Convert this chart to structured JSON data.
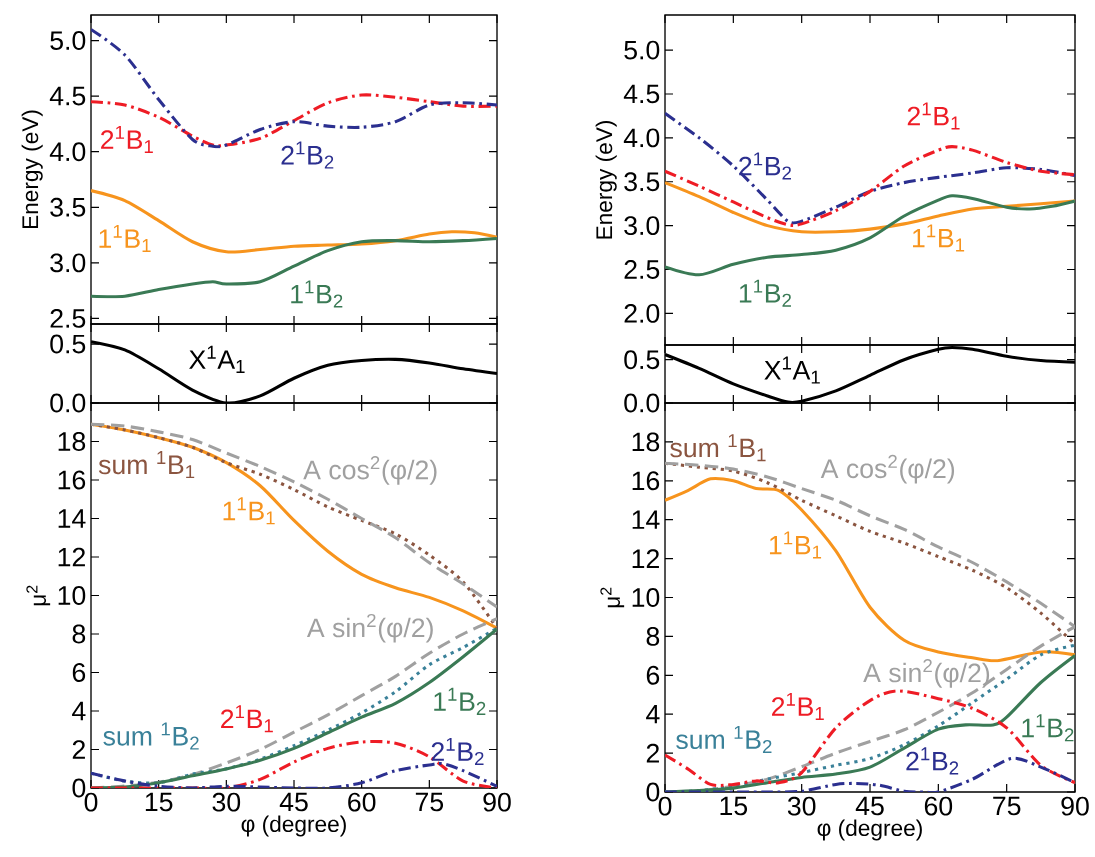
{
  "chart_data": [
    {
      "type": "line",
      "ylabel": "Energy (eV)",
      "xlim": [
        0,
        90
      ],
      "xticks": [
        0,
        15,
        30,
        45,
        60,
        75,
        90
      ],
      "ylim": [
        2.45,
        5.23
      ],
      "yticks": [
        {
          "value": 2.5,
          "label": "2.5"
        },
        {
          "value": 3,
          "label": "3.0"
        },
        {
          "value": 3.5,
          "label": "3.5"
        },
        {
          "value": 4,
          "label": "4.0"
        },
        {
          "value": 4.5,
          "label": "4.5"
        },
        {
          "value": 5,
          "label": "5.0"
        }
      ],
      "tick_labels": "y",
      "series": [
        {
          "name": "2$^{1}$B$_{1}$",
          "color": "#ee1c25",
          "line_style": "dashdot",
          "x": [
            0,
            7.5,
            15,
            22.5,
            27,
            30,
            37.5,
            45,
            52.5,
            60,
            67.5,
            75,
            82.5,
            90
          ],
          "values": [
            4.45,
            4.42,
            4.31,
            4.14,
            4.06,
            4.06,
            4.12,
            4.28,
            4.44,
            4.51,
            4.49,
            4.45,
            4.41,
            4.41
          ]
        },
        {
          "name": "2$^{1}$B$_{2}$",
          "color": "#2b2f8f",
          "line_style": "dashdot",
          "x": [
            0,
            7.5,
            15,
            22.5,
            27,
            30,
            37.5,
            45,
            52.5,
            60,
            67.5,
            75,
            82.5,
            90
          ],
          "values": [
            5.1,
            4.87,
            4.47,
            4.11,
            4.05,
            4.06,
            4.2,
            4.27,
            4.23,
            4.22,
            4.27,
            4.42,
            4.44,
            4.42
          ]
        },
        {
          "name": "1$^{1}$B$_{1}$",
          "color": "#f7941d",
          "line_style": "solid",
          "x": [
            0,
            7.5,
            15,
            22.5,
            30,
            37.5,
            45,
            52.5,
            60,
            67.5,
            75,
            80,
            85,
            90
          ],
          "values": [
            3.65,
            3.56,
            3.38,
            3.19,
            3.1,
            3.12,
            3.15,
            3.16,
            3.17,
            3.2,
            3.26,
            3.28,
            3.27,
            3.23
          ]
        },
        {
          "name": "1$^{1}$B$_{2}$",
          "color": "#3a7a55",
          "line_style": "solid",
          "x": [
            0,
            7.5,
            15,
            22.5,
            27,
            30,
            37.5,
            45,
            52.5,
            60,
            67.5,
            75,
            82.5,
            90
          ],
          "values": [
            2.7,
            2.7,
            2.76,
            2.81,
            2.83,
            2.81,
            2.83,
            2.97,
            3.11,
            3.19,
            3.2,
            3.19,
            3.2,
            3.22
          ]
        }
      ]
    },
    {
      "type": "line",
      "ylabel": "Energy (eV)",
      "xlim": [
        0,
        90
      ],
      "xticks": [
        0,
        15,
        30,
        45,
        60,
        75,
        90
      ],
      "ylim": [
        1.64,
        5.4
      ],
      "yticks": [
        {
          "value": 2,
          "label": "2.0"
        },
        {
          "value": 2.5,
          "label": "2.5"
        },
        {
          "value": 3,
          "label": "3.0"
        },
        {
          "value": 3.5,
          "label": "3.5"
        },
        {
          "value": 4,
          "label": "4.0"
        },
        {
          "value": 4.5,
          "label": "4.5"
        },
        {
          "value": 5,
          "label": "5.0"
        }
      ],
      "tick_labels": "y",
      "series": [
        {
          "name": "2$^{1}$B$_{2}$",
          "color": "#2b2f8f",
          "line_style": "dashdot",
          "x": [
            0,
            7.5,
            15,
            22.5,
            27,
            30,
            37.5,
            45,
            52.5,
            60,
            67.5,
            75,
            82.5,
            90
          ],
          "values": [
            4.28,
            4.0,
            3.68,
            3.29,
            3.05,
            3.05,
            3.21,
            3.39,
            3.49,
            3.55,
            3.6,
            3.66,
            3.64,
            3.57
          ]
        },
        {
          "name": "2$^{1}$B$_{1}$",
          "color": "#ee1c25",
          "line_style": "dashdot",
          "x": [
            0,
            7.5,
            15,
            22.5,
            27,
            30,
            37.5,
            45,
            52.5,
            60,
            63,
            67.5,
            75,
            82.5,
            90
          ],
          "values": [
            3.62,
            3.45,
            3.27,
            3.09,
            3.01,
            3.02,
            3.17,
            3.39,
            3.68,
            3.86,
            3.9,
            3.86,
            3.72,
            3.62,
            3.58
          ]
        },
        {
          "name": "1$^{1}$B$_{1}$",
          "color": "#f7941d",
          "line_style": "solid",
          "x": [
            0,
            7.5,
            15,
            22.5,
            30,
            37.5,
            45,
            52.5,
            60,
            67.5,
            75,
            82.5,
            90
          ],
          "values": [
            3.49,
            3.33,
            3.15,
            3.0,
            2.93,
            2.93,
            2.96,
            3.02,
            3.11,
            3.19,
            3.22,
            3.25,
            3.28
          ]
        },
        {
          "name": "1$^{1}$B$_{2}$",
          "color": "#3a7a55",
          "line_style": "solid",
          "x": [
            0,
            7.5,
            15,
            22.5,
            30,
            37.5,
            45,
            52.5,
            60,
            63,
            67.5,
            75,
            80,
            85,
            90
          ],
          "values": [
            2.53,
            2.44,
            2.56,
            2.64,
            2.67,
            2.72,
            2.86,
            3.11,
            3.29,
            3.34,
            3.31,
            3.21,
            3.19,
            3.22,
            3.28
          ]
        }
      ]
    },
    {
      "type": "line",
      "xlim": [
        0,
        90
      ],
      "xticks": [
        0,
        15,
        30,
        45,
        60,
        75,
        90
      ],
      "ylim": [
        0,
        0.67
      ],
      "yticks": [
        {
          "value": 0,
          "label": "0.0"
        },
        {
          "value": 0.5,
          "label": "0.5"
        }
      ],
      "tick_labels": "y",
      "series": [
        {
          "name": "X$^{1}$A$_{1}$",
          "color": "#000000",
          "line_style": "solid",
          "x": [
            0,
            7.5,
            15,
            22.5,
            30,
            37.5,
            45,
            52.5,
            60,
            67.5,
            75,
            82.5,
            90
          ],
          "values": [
            0.52,
            0.45,
            0.29,
            0.11,
            0.0,
            0.06,
            0.21,
            0.32,
            0.36,
            0.37,
            0.34,
            0.29,
            0.25
          ]
        }
      ]
    },
    {
      "type": "line",
      "xlim": [
        0,
        90
      ],
      "xticks": [
        0,
        15,
        30,
        45,
        60,
        75,
        90
      ],
      "ylim": [
        0,
        0.67
      ],
      "yticks": [
        {
          "value": 0,
          "label": "0.0"
        },
        {
          "value": 0.5,
          "label": "0.5"
        }
      ],
      "tick_labels": "y",
      "series": [
        {
          "name": "X$^{1}$A$_{1}$",
          "color": "#000000",
          "line_style": "solid",
          "x": [
            0,
            7.5,
            15,
            22.5,
            27,
            30,
            37.5,
            45,
            52.5,
            60,
            63,
            67.5,
            75,
            82.5,
            90
          ],
          "values": [
            0.56,
            0.4,
            0.22,
            0.08,
            0.01,
            0.02,
            0.14,
            0.32,
            0.5,
            0.62,
            0.64,
            0.62,
            0.54,
            0.49,
            0.47
          ]
        }
      ]
    },
    {
      "type": "line",
      "xlabel": "φ (degree)",
      "ylabel": "μ$^{2}$",
      "xlim": [
        0,
        90
      ],
      "xticks": [
        0,
        15,
        30,
        45,
        60,
        75,
        90
      ],
      "ylim": [
        0,
        20
      ],
      "yticks": [
        0,
        2,
        4,
        6,
        8,
        10,
        12,
        14,
        16,
        18
      ],
      "series": [
        {
          "name": "1$^{1}$B$_{1}$",
          "color": "#f7941d",
          "line_style": "solid",
          "x": [
            0,
            7.5,
            15,
            22.5,
            30,
            37.5,
            45,
            52.5,
            60,
            67.5,
            75,
            82.5,
            90
          ],
          "values": [
            18.9,
            18.6,
            18.2,
            17.7,
            16.9,
            15.7,
            13.9,
            12.3,
            11.1,
            10.4,
            9.9,
            9.2,
            8.3
          ]
        },
        {
          "name": "sum $^{1}$B$_{1}$",
          "color": "#8b5540",
          "line_style": "dotted",
          "x": [
            0,
            7.5,
            15,
            22.5,
            30,
            37.5,
            45,
            52.5,
            60,
            67.5,
            75,
            82.5,
            90
          ],
          "values": [
            18.9,
            18.6,
            18.2,
            17.7,
            16.9,
            16.3,
            15.5,
            14.6,
            13.9,
            13.2,
            12.1,
            10.7,
            8.3
          ]
        },
        {
          "name": "A cos$^{2}$(φ/2)",
          "color": "#a0a0a0",
          "line_style": "dashed",
          "x": [
            0,
            7.5,
            15,
            22.5,
            30,
            37.5,
            45,
            52.5,
            60,
            67.5,
            75,
            82.5,
            90
          ],
          "values": [
            18.9,
            18.8,
            18.5,
            18.1,
            17.4,
            16.7,
            15.9,
            15.0,
            14.0,
            13.0,
            11.7,
            10.6,
            9.4
          ]
        },
        {
          "name": "A sin$^{2}$(φ/2)",
          "color": "#a0a0a0",
          "line_style": "dashed",
          "x": [
            0,
            7.5,
            15,
            22.5,
            30,
            37.5,
            45,
            52.5,
            60,
            67.5,
            75,
            82.5,
            90
          ],
          "values": [
            0,
            0.1,
            0.3,
            0.7,
            1.3,
            2.0,
            2.9,
            3.8,
            4.8,
            5.8,
            7.0,
            8.0,
            8.8
          ]
        },
        {
          "name": "sum $^{1}$B$_{2}$",
          "color": "#3a8199",
          "line_style": "dotted",
          "x": [
            0,
            7.5,
            15,
            22.5,
            30,
            37.5,
            45,
            52.5,
            60,
            67.5,
            75,
            82.5,
            90
          ],
          "values": [
            0.77,
            0.36,
            0.27,
            0.72,
            1.0,
            1.5,
            2.2,
            3.0,
            3.9,
            5.0,
            6.4,
            7.3,
            8.3
          ]
        },
        {
          "name": "1$^{1}$B$_{2}$",
          "color": "#3a7a55",
          "line_style": "solid",
          "x": [
            0,
            7.5,
            15,
            22.5,
            30,
            37.5,
            45,
            52.5,
            60,
            67.5,
            75,
            82.5,
            90
          ],
          "values": [
            0,
            0.05,
            0.27,
            0.63,
            0.99,
            1.44,
            2.06,
            2.87,
            3.68,
            4.4,
            5.48,
            6.82,
            8.26
          ]
        },
        {
          "name": "2$^{1}$B$_{1}$",
          "color": "#ee1c25",
          "line_style": "dashdot",
          "x": [
            0,
            7.5,
            15,
            22.5,
            30,
            37.5,
            45,
            52.5,
            60,
            67.5,
            75,
            82.5,
            90
          ],
          "values": [
            0,
            0,
            0,
            0,
            0,
            0.45,
            1.35,
            2.06,
            2.39,
            2.33,
            1.62,
            0.36,
            0
          ]
        },
        {
          "name": "2$^{1}$B$_{2}$",
          "color": "#2b2f8f",
          "line_style": "dashdot",
          "x": [
            0,
            7.5,
            15,
            22.5,
            30,
            37.5,
            45,
            52.5,
            60,
            67.5,
            75,
            78,
            82.5,
            90
          ],
          "values": [
            0.77,
            0.36,
            0.09,
            0,
            0.09,
            0.05,
            0,
            0,
            0.27,
            0.9,
            1.2,
            1.26,
            0.9,
            0.09
          ]
        }
      ]
    },
    {
      "type": "line",
      "xlabel": "φ (degree)",
      "ylabel": "μ$^{2}$",
      "xlim": [
        0,
        90
      ],
      "xticks": [
        0,
        15,
        30,
        45,
        60,
        75,
        90
      ],
      "ylim": [
        0,
        20
      ],
      "yticks": [
        0,
        2,
        4,
        6,
        8,
        10,
        12,
        14,
        16,
        18
      ],
      "series": [
        {
          "name": "1$^{1}$B$_{1}$",
          "color": "#f7941d",
          "line_style": "solid",
          "x": [
            0,
            5,
            10,
            15,
            20,
            25,
            30,
            37.5,
            45,
            52.5,
            60,
            67.5,
            73,
            82.5,
            90
          ],
          "values": [
            15.0,
            15.5,
            16.1,
            16.0,
            15.6,
            15.5,
            14.5,
            12.4,
            9.5,
            7.8,
            7.2,
            6.9,
            6.75,
            7.2,
            7.05
          ]
        },
        {
          "name": "sum $^{1}$B$_{1}$",
          "color": "#8b5540",
          "line_style": "dotted",
          "x": [
            0,
            7.5,
            15,
            22.5,
            30,
            37.5,
            45,
            52.5,
            60,
            67.5,
            75,
            82.5,
            90
          ],
          "values": [
            16.9,
            16.7,
            16.5,
            15.9,
            15.0,
            14.2,
            13.4,
            12.8,
            12.1,
            11.4,
            10.5,
            9.2,
            7.6
          ]
        },
        {
          "name": "A cos$^{2}$(φ/2)",
          "color": "#a0a0a0",
          "line_style": "dashed",
          "x": [
            0,
            7.5,
            15,
            22.5,
            30,
            37.5,
            45,
            52.5,
            60,
            67.5,
            75,
            82.5,
            90
          ],
          "values": [
            16.9,
            16.8,
            16.6,
            16.2,
            15.6,
            15.0,
            14.2,
            13.5,
            12.6,
            11.8,
            10.8,
            9.7,
            8.5
          ]
        },
        {
          "name": "A sin$^{2}$(φ/2)",
          "color": "#a0a0a0",
          "line_style": "dashed",
          "x": [
            0,
            7.5,
            15,
            22.5,
            30,
            37.5,
            45,
            52.5,
            60,
            67.5,
            75,
            82.5,
            90
          ],
          "values": [
            0,
            0.05,
            0.3,
            0.66,
            1.3,
            2.0,
            2.6,
            3.2,
            4.1,
            5.1,
            6.3,
            7.5,
            8.5
          ]
        },
        {
          "name": "sum $^{1}$B$_{2}$",
          "color": "#3a8199",
          "line_style": "dotted",
          "x": [
            0,
            7.5,
            15,
            22.5,
            30,
            37.5,
            45,
            52.5,
            60,
            67.5,
            75,
            82.5,
            90
          ],
          "values": [
            0,
            0.07,
            0.3,
            0.66,
            1.0,
            1.37,
            1.72,
            2.43,
            3.4,
            4.6,
            5.8,
            7.05,
            7.55
          ]
        },
        {
          "name": "1$^{1}$B$_{2}$",
          "color": "#3a7a55",
          "line_style": "solid",
          "x": [
            0,
            7.5,
            15,
            22.5,
            30,
            37.5,
            45,
            52.5,
            60,
            66,
            72,
            75,
            82.5,
            90
          ],
          "values": [
            0,
            0.07,
            0.2,
            0.48,
            0.75,
            0.92,
            1.28,
            2.26,
            3.23,
            3.45,
            3.45,
            3.85,
            5.63,
            7.02
          ]
        },
        {
          "name": "2$^{1}$B$_{1}$",
          "color": "#ee1c25",
          "line_style": "dashdot",
          "x": [
            0,
            5,
            10,
            15,
            20,
            25,
            30,
            37.5,
            45,
            51,
            60,
            67.5,
            75,
            82.5,
            90
          ],
          "values": [
            1.9,
            1.19,
            0.39,
            0.39,
            0.57,
            0.48,
            1.0,
            3.3,
            4.7,
            5.2,
            4.8,
            4.3,
            3.3,
            1.37,
            0.48
          ]
        },
        {
          "name": "2$^{1}$B$_{2}$",
          "color": "#2b2f8f",
          "line_style": "dashdot",
          "x": [
            0,
            15,
            22.5,
            30,
            37.5,
            42,
            47,
            52.5,
            57,
            60,
            67.5,
            76,
            82.5,
            90
          ],
          "values": [
            0,
            0,
            0,
            0.04,
            0.39,
            0.44,
            0.35,
            0.04,
            0,
            0,
            0.66,
            1.72,
            1.28,
            0.48
          ]
        }
      ]
    }
  ]
}
